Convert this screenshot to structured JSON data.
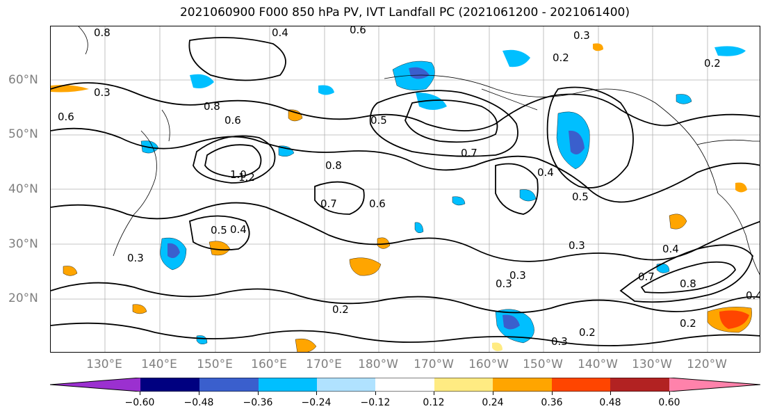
{
  "title": "2021060900 F000 850 hPa PV, IVT Landfall PC (2021061200 - 2021061400)",
  "lat_labels": [
    "60°N",
    "50°N",
    "40°N",
    "30°N",
    "20°N"
  ],
  "lon_labels": [
    "130°E",
    "140°E",
    "150°E",
    "160°E",
    "170°E",
    "180°W",
    "170°W",
    "160°W",
    "150°W",
    "140°W",
    "130°W",
    "120°W"
  ],
  "colorbar": {
    "colors": [
      "#9b30d0",
      "#000080",
      "#3a5fcd",
      "#00bfff",
      "#b0e2ff",
      "#ffffff",
      "#ffeb82",
      "#ffa500",
      "#ff4500",
      "#b22222",
      "#ff82ab"
    ],
    "ticks": [
      "−0.60",
      "−0.48",
      "−0.36",
      "−0.24",
      "−0.12",
      "0.12",
      "0.24",
      "0.36",
      "0.48",
      "0.60"
    ]
  },
  "contour_labels": [
    "0.8",
    "0.4",
    "0.3",
    "0.6",
    "0.2",
    "0.5",
    "0.7",
    "1.0",
    "0.4",
    "0.3",
    "0.2",
    "0.8",
    "0.6",
    "0.5",
    "0.7",
    "0.6",
    "0.8",
    "1.2",
    "0.3",
    "0.4",
    "0.5",
    "0.4",
    "0.2",
    "0.3",
    "0.3",
    "0.2",
    "0.8",
    "0.7",
    "0.4",
    "0.6",
    "0.3",
    "0.2",
    "0.3"
  ]
}
